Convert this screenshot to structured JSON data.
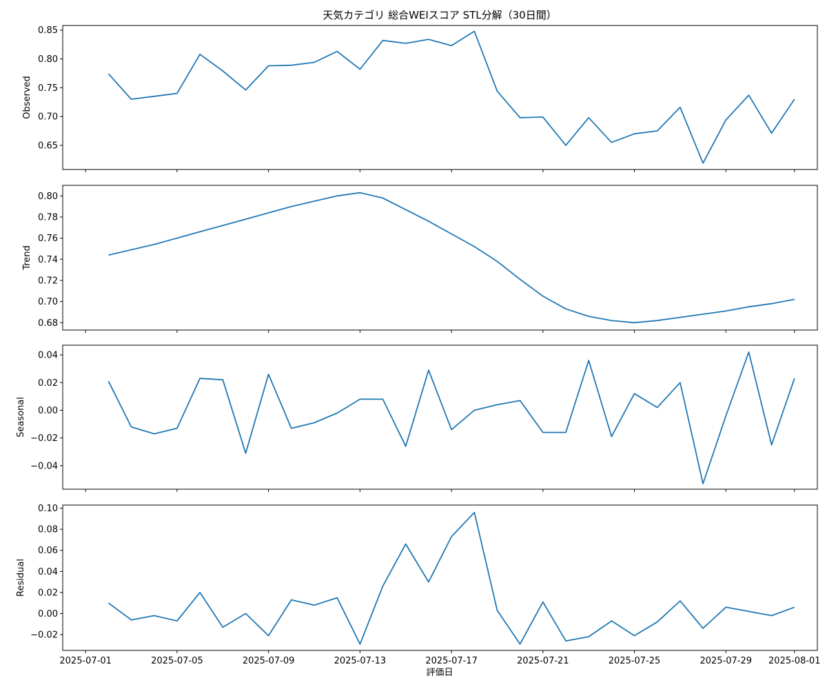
{
  "chart_data": {
    "type": "line",
    "title": "天気カテゴリ 総合WEIスコア STL分解（30日間）",
    "xlabel": "評価日",
    "x_dates": [
      "2025-07-02",
      "2025-07-03",
      "2025-07-04",
      "2025-07-05",
      "2025-07-06",
      "2025-07-07",
      "2025-07-08",
      "2025-07-09",
      "2025-07-10",
      "2025-07-11",
      "2025-07-12",
      "2025-07-13",
      "2025-07-14",
      "2025-07-15",
      "2025-07-16",
      "2025-07-17",
      "2025-07-18",
      "2025-07-19",
      "2025-07-20",
      "2025-07-21",
      "2025-07-22",
      "2025-07-23",
      "2025-07-24",
      "2025-07-25",
      "2025-07-26",
      "2025-07-27",
      "2025-07-28",
      "2025-07-29",
      "2025-07-30",
      "2025-07-31",
      "2025-08-01"
    ],
    "x_ticks": [
      "2025-07-01",
      "2025-07-05",
      "2025-07-09",
      "2025-07-13",
      "2025-07-17",
      "2025-07-21",
      "2025-07-25",
      "2025-07-29",
      "2025-08-01"
    ],
    "x_range": [
      "2025-06-30",
      "2025-08-02"
    ],
    "grid": false,
    "panels": [
      {
        "ylabel": "Observed",
        "ylim": [
          0.608,
          0.858
        ],
        "yticks": [
          "0.65",
          "0.70",
          "0.75",
          "0.80",
          "0.85"
        ],
        "values": [
          0.774,
          0.73,
          0.735,
          0.74,
          0.808,
          0.779,
          0.746,
          0.788,
          0.789,
          0.794,
          0.813,
          0.782,
          0.832,
          0.827,
          0.834,
          0.823,
          0.848,
          0.744,
          0.698,
          0.699,
          0.65,
          0.698,
          0.655,
          0.67,
          0.675,
          0.716,
          0.619,
          0.694,
          0.737,
          0.671,
          0.73
        ]
      },
      {
        "ylabel": "Trend",
        "ylim": [
          0.673,
          0.81
        ],
        "yticks": [
          "0.68",
          "0.70",
          "0.72",
          "0.74",
          "0.76",
          "0.78",
          "0.80"
        ],
        "values": [
          0.744,
          0.749,
          0.754,
          0.76,
          0.766,
          0.772,
          0.778,
          0.784,
          0.79,
          0.795,
          0.8,
          0.803,
          0.798,
          0.787,
          0.776,
          0.764,
          0.752,
          0.738,
          0.721,
          0.705,
          0.693,
          0.686,
          0.682,
          0.68,
          0.682,
          0.685,
          0.688,
          0.691,
          0.695,
          0.698,
          0.702
        ]
      },
      {
        "ylabel": "Seasonal",
        "ylim": [
          -0.057,
          0.047
        ],
        "yticks": [
          "−0.04",
          "−0.02",
          "0.00",
          "0.02",
          "0.04"
        ],
        "values": [
          0.021,
          -0.012,
          -0.017,
          -0.013,
          0.023,
          0.022,
          -0.031,
          0.026,
          -0.013,
          -0.009,
          -0.002,
          0.008,
          0.008,
          -0.026,
          0.029,
          -0.014,
          0.0,
          0.004,
          0.007,
          -0.016,
          -0.016,
          0.036,
          -0.019,
          0.012,
          0.002,
          0.02,
          -0.053,
          -0.004,
          0.042,
          -0.025,
          0.023
        ]
      },
      {
        "ylabel": "Residual",
        "ylim": [
          -0.035,
          0.103
        ],
        "yticks": [
          "−0.02",
          "0.00",
          "0.02",
          "0.04",
          "0.06",
          "0.08",
          "0.10"
        ],
        "values": [
          0.01,
          -0.006,
          -0.002,
          -0.007,
          0.02,
          -0.013,
          0.0,
          -0.021,
          0.013,
          0.008,
          0.015,
          -0.029,
          0.026,
          0.066,
          0.03,
          0.073,
          0.096,
          0.003,
          -0.029,
          0.011,
          -0.026,
          -0.022,
          -0.007,
          -0.021,
          -0.008,
          0.012,
          -0.014,
          0.006,
          0.002,
          -0.002,
          0.006
        ]
      }
    ]
  }
}
